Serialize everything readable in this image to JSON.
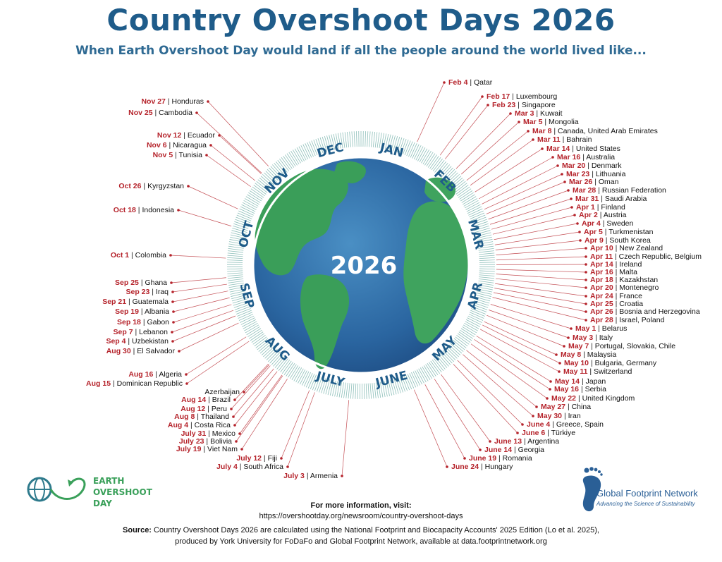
{
  "header": {
    "title": "Country Overshoot Days 2026",
    "subtitle": "When Earth Overshoot Day would land if all the people around the world lived like..."
  },
  "globe": {
    "year_label": "2026",
    "months": [
      "JAN",
      "FEB",
      "MAR",
      "APR",
      "MAY",
      "JUNE",
      "JULY",
      "AUG",
      "SEP",
      "OCT",
      "NOV",
      "DEC"
    ]
  },
  "entries": [
    {
      "date": "Feb 4",
      "country": "Qatar"
    },
    {
      "date": "Feb 17",
      "country": "Luxembourg"
    },
    {
      "date": "Feb 23",
      "country": "Singapore"
    },
    {
      "date": "Mar 3",
      "country": "Kuwait"
    },
    {
      "date": "Mar 5",
      "country": "Mongolia"
    },
    {
      "date": "Mar 8",
      "country": "Canada, United Arab Emirates"
    },
    {
      "date": "Mar 11",
      "country": "Bahrain"
    },
    {
      "date": "Mar 14",
      "country": "United States"
    },
    {
      "date": "Mar 16",
      "country": "Australia"
    },
    {
      "date": "Mar 20",
      "country": "Denmark"
    },
    {
      "date": "Mar 23",
      "country": "Lithuania"
    },
    {
      "date": "Mar 26",
      "country": "Oman"
    },
    {
      "date": "Mar 28",
      "country": "Russian Federation"
    },
    {
      "date": "Mar 31",
      "country": "Saudi Arabia"
    },
    {
      "date": "Apr 1",
      "country": "Finland"
    },
    {
      "date": "Apr 2",
      "country": "Austria"
    },
    {
      "date": "Apr 4",
      "country": "Sweden"
    },
    {
      "date": "Apr 5",
      "country": "Turkmenistan"
    },
    {
      "date": "Apr 9",
      "country": "South Korea"
    },
    {
      "date": "Apr 10",
      "country": "New Zealand"
    },
    {
      "date": "Apr 11",
      "country": "Czech Republic, Belgium"
    },
    {
      "date": "Apr 14",
      "country": "Ireland"
    },
    {
      "date": "Apr 16",
      "country": "Malta"
    },
    {
      "date": "Apr 18",
      "country": "Kazakhstan"
    },
    {
      "date": "Apr 20",
      "country": "Montenegro"
    },
    {
      "date": "Apr 24",
      "country": "France"
    },
    {
      "date": "Apr 25",
      "country": "Croatia"
    },
    {
      "date": "Apr 26",
      "country": "Bosnia and Herzegovina"
    },
    {
      "date": "Apr 28",
      "country": "Israel, Poland"
    },
    {
      "date": "May 1",
      "country": "Belarus"
    },
    {
      "date": "May 3",
      "country": "Italy"
    },
    {
      "date": "May 7",
      "country": "Portugal, Slovakia, Chile"
    },
    {
      "date": "May 8",
      "country": "Malaysia"
    },
    {
      "date": "May 10",
      "country": "Bulgaria, Germany"
    },
    {
      "date": "May 11",
      "country": "Switzerland"
    },
    {
      "date": "May 14",
      "country": "Japan"
    },
    {
      "date": "May 16",
      "country": "Serbia"
    },
    {
      "date": "May 22",
      "country": "United Kingdom"
    },
    {
      "date": "May 27",
      "country": "China"
    },
    {
      "date": "May 30",
      "country": "Iran"
    },
    {
      "date": "June 4",
      "country": "Greece, Spain"
    },
    {
      "date": "June 6",
      "country": "Türkiye"
    },
    {
      "date": "June 13",
      "country": "Argentina"
    },
    {
      "date": "June 14",
      "country": "Georgia"
    },
    {
      "date": "June 19",
      "country": "Romania"
    },
    {
      "date": "June 24",
      "country": "Hungary"
    },
    {
      "date": "July 3",
      "country": "Armenia"
    },
    {
      "date": "July 4",
      "country": "South Africa"
    },
    {
      "date": "July 12",
      "country": "Fiji"
    },
    {
      "date": "July 19",
      "country": "Viet Nam"
    },
    {
      "date": "July 23",
      "country": "Bolivia"
    },
    {
      "date": "July 31",
      "country": "Mexico"
    },
    {
      "date": "Aug 4",
      "country": "Costa Rica"
    },
    {
      "date": "Aug 8",
      "country": "Thailand"
    },
    {
      "date": "Aug 12",
      "country": "Peru"
    },
    {
      "date": "Aug 14",
      "country": "Brazil"
    },
    {
      "date": "Aug 15",
      "country": "Dominican Republic"
    },
    {
      "date": "",
      "country": "Azerbaijan"
    },
    {
      "date": "Aug 16",
      "country": "Algeria"
    },
    {
      "date": "Aug 30",
      "country": "El Salvador"
    },
    {
      "date": "Sep 4",
      "country": "Uzbekistan"
    },
    {
      "date": "Sep 7",
      "country": "Lebanon"
    },
    {
      "date": "Sep 18",
      "country": "Gabon"
    },
    {
      "date": "Sep 19",
      "country": "Albania"
    },
    {
      "date": "Sep 21",
      "country": "Guatemala"
    },
    {
      "date": "Sep 23",
      "country": "Iraq"
    },
    {
      "date": "Sep 25",
      "country": "Ghana"
    },
    {
      "date": "Oct 1",
      "country": "Colombia"
    },
    {
      "date": "Oct 18",
      "country": "Indonesia"
    },
    {
      "date": "Oct 26",
      "country": "Kyrgyzstan"
    },
    {
      "date": "Nov 5",
      "country": "Tunisia"
    },
    {
      "date": "Nov 6",
      "country": "Nicaragua"
    },
    {
      "date": "Nov 12",
      "country": "Ecuador"
    },
    {
      "date": "Nov 25",
      "country": "Cambodia"
    },
    {
      "date": "Nov 27",
      "country": "Honduras"
    }
  ],
  "logos": {
    "left": {
      "line1": "EARTH",
      "line2": "OVERSHOOT",
      "line3": "DAY"
    },
    "right": {
      "name": "Global Footprint Network",
      "tagline": "Advancing the Science of Sustainability"
    }
  },
  "footer": {
    "more_info_label": "For more information, visit:",
    "more_info_url": "https://overshootday.org/newsroom/country-overshoot-days",
    "source_label": "Source:",
    "source_text_1": " Country Overshoot Days 2026 are calculated using the National Footprint and Biocapacity Accounts' 2025 Edition (Lo et al. 2025),",
    "source_text_2": "produced by York University for FoDaFo and Global Footprint Network, available at data.footprintnetwork.org"
  },
  "colors": {
    "title": "#1f5c8a",
    "date_red": "#b5232b",
    "ring_teal": "#2f8a7f",
    "ocean": "#2d6ea8",
    "land": "#3da35a",
    "month_label": "#1f5c8a"
  }
}
